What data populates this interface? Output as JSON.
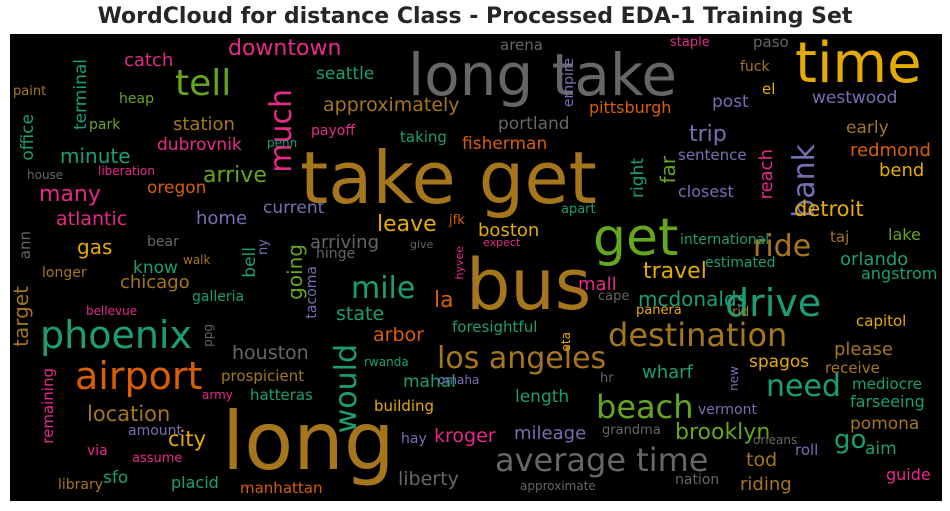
{
  "chart_data": {
    "type": "wordcloud",
    "title": "WordCloud for distance Class - Processed EDA-1 Training Set",
    "palette": [
      "#1b9e77",
      "#d95f02",
      "#7570b3",
      "#e7298a",
      "#66a61e",
      "#e6ab02",
      "#a6761d",
      "#666666"
    ],
    "words": [
      {
        "t": "long take",
        "c": "#666666"
      },
      {
        "t": "time",
        "c": "#e6ab02"
      },
      {
        "t": "take get",
        "c": "#a6761d"
      },
      {
        "t": "bus",
        "c": "#a6761d"
      },
      {
        "t": "long",
        "c": "#a6761d"
      },
      {
        "t": "get",
        "c": "#66a61e"
      },
      {
        "t": "drive",
        "c": "#1b9e77"
      },
      {
        "t": "phoenix",
        "c": "#1b9e77"
      },
      {
        "t": "airport",
        "c": "#d95f02"
      },
      {
        "t": "destination",
        "c": "#a6761d"
      },
      {
        "t": "average time",
        "c": "#666666"
      },
      {
        "t": "los angeles",
        "c": "#a6761d"
      },
      {
        "t": "beach",
        "c": "#66a61e"
      },
      {
        "t": "tell",
        "c": "#66a61e"
      },
      {
        "t": "much",
        "c": "#e7298a"
      },
      {
        "t": "bank",
        "c": "#7570b3"
      },
      {
        "t": "ride",
        "c": "#a6761d"
      },
      {
        "t": "mile",
        "c": "#1b9e77"
      },
      {
        "t": "would",
        "c": "#1b9e77"
      },
      {
        "t": "need",
        "c": "#1b9e77"
      },
      {
        "t": "downtown",
        "c": "#e7298a"
      },
      {
        "t": "catch",
        "c": "#e7298a"
      },
      {
        "t": "seattle",
        "c": "#1b9e77"
      },
      {
        "t": "approximately",
        "c": "#a6761d"
      },
      {
        "t": "station",
        "c": "#a6761d"
      },
      {
        "t": "minute",
        "c": "#1b9e77"
      },
      {
        "t": "dubrovnik",
        "c": "#e7298a"
      },
      {
        "t": "arrive",
        "c": "#66a61e"
      },
      {
        "t": "many",
        "c": "#e7298a"
      },
      {
        "t": "oregon",
        "c": "#d95f02"
      },
      {
        "t": "atlantic",
        "c": "#e7298a"
      },
      {
        "t": "home",
        "c": "#7570b3"
      },
      {
        "t": "current",
        "c": "#7570b3"
      },
      {
        "t": "leave",
        "c": "#e6ab02"
      },
      {
        "t": "gas",
        "c": "#e6ab02"
      },
      {
        "t": "know",
        "c": "#1b9e77"
      },
      {
        "t": "chicago",
        "c": "#a6761d"
      },
      {
        "t": "going",
        "c": "#66a61e"
      },
      {
        "t": "arriving",
        "c": "#666666"
      },
      {
        "t": "boston",
        "c": "#e6ab02"
      },
      {
        "t": "travel",
        "c": "#e6ab02"
      },
      {
        "t": "mcdonalds",
        "c": "#1b9e77"
      },
      {
        "t": "la",
        "c": "#d95f02"
      },
      {
        "t": "mall",
        "c": "#e7298a"
      },
      {
        "t": "state",
        "c": "#1b9e77"
      },
      {
        "t": "arbor",
        "c": "#d95f02"
      },
      {
        "t": "houston",
        "c": "#666666"
      },
      {
        "t": "location",
        "c": "#a6761d"
      },
      {
        "t": "city",
        "c": "#e6ab02"
      },
      {
        "t": "kroger",
        "c": "#e7298a"
      },
      {
        "t": "mileage",
        "c": "#7570b3"
      },
      {
        "t": "length",
        "c": "#1b9e77"
      },
      {
        "t": "mahal",
        "c": "#1b9e77"
      },
      {
        "t": "wharf",
        "c": "#1b9e77"
      },
      {
        "t": "spagos",
        "c": "#e6ab02"
      },
      {
        "t": "please",
        "c": "#a6761d"
      },
      {
        "t": "brooklyn",
        "c": "#66a61e"
      },
      {
        "t": "go",
        "c": "#1b9e77"
      },
      {
        "t": "tod",
        "c": "#a6761d"
      },
      {
        "t": "riding",
        "c": "#a6761d"
      },
      {
        "t": "liberty",
        "c": "#666666"
      },
      {
        "t": "sfo",
        "c": "#1b9e77"
      },
      {
        "t": "placid",
        "c": "#1b9e77"
      },
      {
        "t": "manhattan",
        "c": "#d95f02"
      },
      {
        "t": "approximate",
        "c": "#666666"
      },
      {
        "t": "nation",
        "c": "#666666"
      },
      {
        "t": "grandma",
        "c": "#666666"
      },
      {
        "t": "roll",
        "c": "#7570b3"
      },
      {
        "t": "aim",
        "c": "#1b9e77"
      },
      {
        "t": "guide",
        "c": "#e7298a"
      },
      {
        "t": "pomona",
        "c": "#a6761d"
      },
      {
        "t": "farseeing",
        "c": "#1b9e77"
      },
      {
        "t": "mediocre",
        "c": "#1b9e77"
      },
      {
        "t": "receive",
        "c": "#a6761d"
      },
      {
        "t": "capitol",
        "c": "#e6ab02"
      },
      {
        "t": "angstrom",
        "c": "#1b9e77"
      },
      {
        "t": "orlando",
        "c": "#1b9e77"
      },
      {
        "t": "lake",
        "c": "#66a61e"
      },
      {
        "t": "taj",
        "c": "#a6761d"
      },
      {
        "t": "detroit",
        "c": "#e6ab02"
      },
      {
        "t": "bend",
        "c": "#e6ab02"
      },
      {
        "t": "redmond",
        "c": "#d95f02"
      },
      {
        "t": "early",
        "c": "#a6761d"
      },
      {
        "t": "westwood",
        "c": "#7570b3"
      },
      {
        "t": "post",
        "c": "#7570b3"
      },
      {
        "t": "trip",
        "c": "#7570b3"
      },
      {
        "t": "reach",
        "c": "#e7298a"
      },
      {
        "t": "far",
        "c": "#66a61e"
      },
      {
        "t": "right",
        "c": "#1b9e77"
      },
      {
        "t": "closest",
        "c": "#7570b3"
      },
      {
        "t": "sentence",
        "c": "#7570b3"
      },
      {
        "t": "fisherman",
        "c": "#d95f02"
      },
      {
        "t": "portland",
        "c": "#666666"
      },
      {
        "t": "pittsburgh",
        "c": "#d95f02"
      },
      {
        "t": "empire",
        "c": "#7570b3"
      },
      {
        "t": "arena",
        "c": "#666666"
      },
      {
        "t": "staple",
        "c": "#e7298a"
      },
      {
        "t": "paso",
        "c": "#666666"
      },
      {
        "t": "fuck",
        "c": "#a6761d"
      },
      {
        "t": "el",
        "c": "#e6ab02"
      },
      {
        "t": "payoff",
        "c": "#e7298a"
      },
      {
        "t": "penn",
        "c": "#1b9e77"
      },
      {
        "t": "taking",
        "c": "#1b9e77"
      },
      {
        "t": "heap",
        "c": "#66a61e"
      },
      {
        "t": "park",
        "c": "#66a61e"
      },
      {
        "t": "paint",
        "c": "#a6761d"
      },
      {
        "t": "office",
        "c": "#1b9e77"
      },
      {
        "t": "terminal",
        "c": "#1b9e77"
      },
      {
        "t": "house",
        "c": "#666666"
      },
      {
        "t": "liberation",
        "c": "#e7298a"
      },
      {
        "t": "international",
        "c": "#1b9e77"
      },
      {
        "t": "apart",
        "c": "#1b9e77"
      },
      {
        "t": "estimated",
        "c": "#1b9e77"
      },
      {
        "t": "jfk",
        "c": "#d95f02"
      },
      {
        "t": "give",
        "c": "#666666"
      },
      {
        "t": "expect",
        "c": "#e7298a"
      },
      {
        "t": "hyvee",
        "c": "#e7298a"
      },
      {
        "t": "bear",
        "c": "#666666"
      },
      {
        "t": "ny",
        "c": "#7570b3"
      },
      {
        "t": "bell",
        "c": "#1b9e77"
      },
      {
        "t": "hinge",
        "c": "#666666"
      },
      {
        "t": "tacoma",
        "c": "#7570b3"
      },
      {
        "t": "walk",
        "c": "#a6761d"
      },
      {
        "t": "longer",
        "c": "#a6761d"
      },
      {
        "t": "ann",
        "c": "#666666"
      },
      {
        "t": "target",
        "c": "#a6761d"
      },
      {
        "t": "galleria",
        "c": "#1b9e77"
      },
      {
        "t": "bellevue",
        "c": "#e7298a"
      },
      {
        "t": "ppg",
        "c": "#666666"
      },
      {
        "t": "cape",
        "c": "#666666"
      },
      {
        "t": "panera",
        "c": "#e6ab02"
      },
      {
        "t": "rid",
        "c": "#a6761d"
      },
      {
        "t": "eta",
        "c": "#e6ab02"
      },
      {
        "t": "foresightful",
        "c": "#1b9e77"
      },
      {
        "t": "rwanda",
        "c": "#1b9e77"
      },
      {
        "t": "omaha",
        "c": "#7570b3"
      },
      {
        "t": "hr",
        "c": "#666666"
      },
      {
        "t": "new",
        "c": "#7570b3"
      },
      {
        "t": "prospicient",
        "c": "#a6761d"
      },
      {
        "t": "army",
        "c": "#e7298a"
      },
      {
        "t": "hatteras",
        "c": "#1b9e77"
      },
      {
        "t": "building",
        "c": "#e6ab02"
      },
      {
        "t": "vermont",
        "c": "#7570b3"
      },
      {
        "t": "orleans",
        "c": "#666666"
      },
      {
        "t": "amount",
        "c": "#7570b3"
      },
      {
        "t": "remaining",
        "c": "#e7298a"
      },
      {
        "t": "via",
        "c": "#e7298a"
      },
      {
        "t": "assume",
        "c": "#e7298a"
      },
      {
        "t": "hay",
        "c": "#7570b3"
      },
      {
        "t": "library",
        "c": "#a6761d"
      }
    ]
  }
}
